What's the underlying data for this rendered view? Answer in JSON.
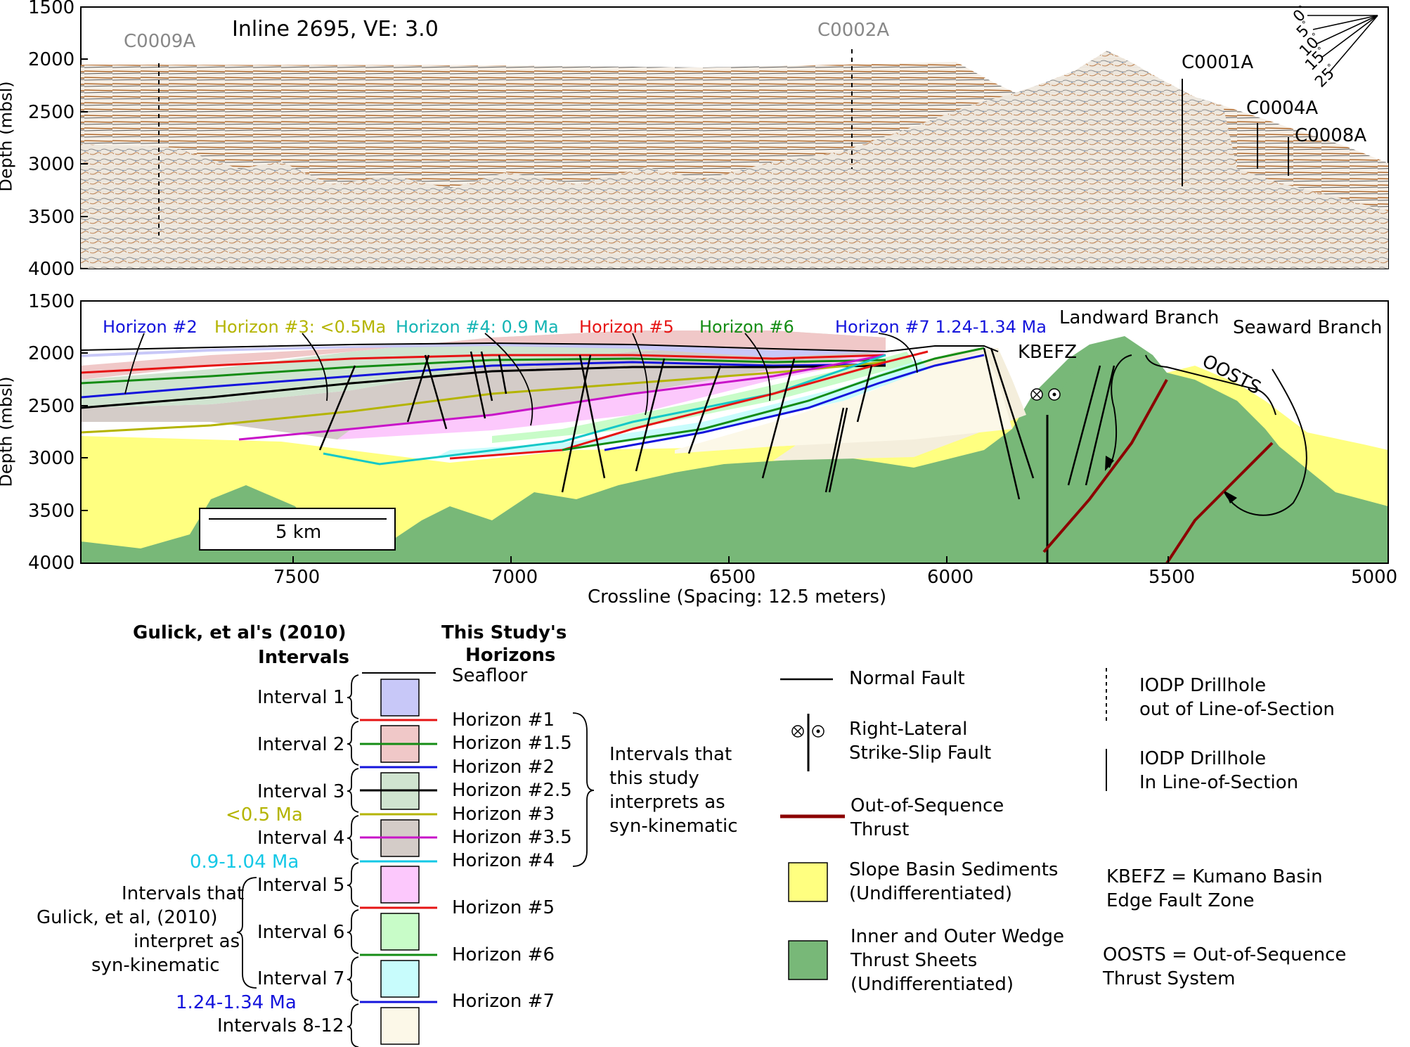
{
  "top_panel": {
    "title": "Inline 2695, VE: 3.0",
    "ylabel": "Depth (mbsl)",
    "y_ticks": [
      "1500",
      "2000",
      "2500",
      "3000",
      "3500",
      "4000"
    ],
    "drillholes_out": [
      "C0009A",
      "C0002A"
    ],
    "drillholes_in": [
      "C0001A",
      "C0004A",
      "C0008A"
    ],
    "dip_scale": [
      "0",
      "5",
      "10",
      "15",
      "25"
    ],
    "dip_unit": "°"
  },
  "bottom_panel": {
    "ylabel": "Depth (mbsl)",
    "y_ticks": [
      "1500",
      "2000",
      "2500",
      "3000",
      "3500",
      "4000"
    ],
    "x_ticks": [
      "7500",
      "7000",
      "6500",
      "6000",
      "5500",
      "5000"
    ],
    "xlabel": "Crossline (Spacing: 12.5 meters)",
    "scale_bar": "5 km",
    "horizon_labels": [
      {
        "text": "Horizon #2",
        "color": "#1414dc"
      },
      {
        "text": "Horizon #3: <0.5Ma",
        "color": "#b4b400"
      },
      {
        "text": "Horizon #4: 0.9 Ma",
        "color": "#14b4b4"
      },
      {
        "text": "Horizon #5",
        "color": "#e61414"
      },
      {
        "text": "Horizon #6",
        "color": "#148c14"
      },
      {
        "text": "Horizon #7 1.24-1.34 Ma",
        "color": "#1414dc"
      }
    ],
    "labels": {
      "landward": "Landward Branch",
      "seaward": "Seaward Branch",
      "kbefz": "KBEFZ",
      "oosts": "OOSTS"
    }
  },
  "legend": {
    "intervals_header": [
      "Gulick, et al's (2010)",
      "Intervals"
    ],
    "horizons_header": [
      "This Study's",
      "Horizons"
    ],
    "seafloor": "Seafloor",
    "intervals": [
      {
        "label": "Interval 1",
        "color": "#c8c8f8"
      },
      {
        "label": "Interval 2",
        "color": "#f0c8c8"
      },
      {
        "label": "Interval 3",
        "color": "#d0e4d0"
      },
      {
        "label": "Interval 4",
        "color": "#d4ccc8"
      },
      {
        "label": "Interval 5",
        "color": "#fcc8fc"
      },
      {
        "label": "Interval 6",
        "color": "#c8fcc8"
      },
      {
        "label": "Interval 7",
        "color": "#c8fcfc"
      },
      {
        "label": "Intervals 8-12",
        "color": "#fcf8e8"
      }
    ],
    "horizons": [
      {
        "label": "Horizon #1",
        "color": "#e61414"
      },
      {
        "label": "Horizon #1.5",
        "color": "#148c14"
      },
      {
        "label": "Horizon #2",
        "color": "#1414dc"
      },
      {
        "label": "Horizon #2.5",
        "color": "#000000"
      },
      {
        "label": "Horizon #3",
        "color": "#b4b400"
      },
      {
        "label": "Horizon #3.5",
        "color": "#c814c8"
      },
      {
        "label": "Horizon #4",
        "color": "#14c8c8"
      },
      {
        "label": "Horizon #5",
        "color": "#e61414"
      },
      {
        "label": "Horizon #6",
        "color": "#148c14"
      },
      {
        "label": "Horizon #7",
        "color": "#1414dc"
      }
    ],
    "ages": [
      {
        "text": "<0.5 Ma",
        "color": "#b4b400"
      },
      {
        "text": "0.9-1.04 Ma",
        "color": "#14c8e6"
      },
      {
        "text": "1.24-1.34 Ma",
        "color": "#1414dc"
      }
    ],
    "syn_this_study": [
      "Intervals that",
      "this study",
      "interprets as",
      "syn-kinematic"
    ],
    "syn_gulick": [
      "Intervals that",
      "Gulick, et al, (2010)",
      "interpret as",
      "syn-kinematic"
    ],
    "symbols": {
      "normal_fault": "Normal Fault",
      "strike_slip": [
        "Right-Lateral",
        "Strike-Slip Fault"
      ],
      "oos_thrust": [
        "Out-of-Sequence",
        "Thrust"
      ],
      "slope_basin": [
        "Slope Basin Sediments",
        "(Undifferentiated)"
      ],
      "thrust_sheets": [
        "Inner and Outer Wedge",
        "Thrust Sheets",
        "(Undifferentiated)"
      ],
      "drill_out": [
        "IODP Drillhole",
        "out of Line-of-Section"
      ],
      "drill_in": [
        "IODP Drillhole",
        "In Line-of-Section"
      ],
      "kbefz_def": [
        "KBEFZ = Kumano Basin",
        "Edge Fault Zone"
      ],
      "oosts_def": [
        "OOSTS = Out-of-Sequence",
        "Thrust System"
      ]
    },
    "colors": {
      "slope": "#ffff80",
      "thrust": "#78b878",
      "oos": "#8b0000"
    }
  }
}
